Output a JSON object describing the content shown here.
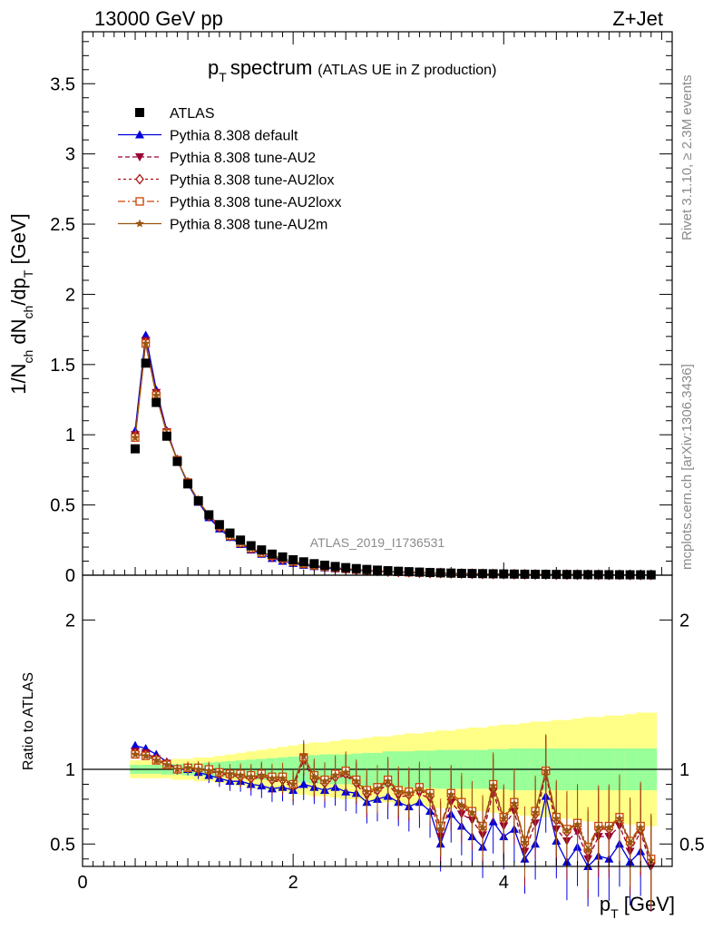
{
  "header": {
    "energy_label": "13000 GeV pp",
    "process_label": "Z+Jet",
    "rivet_label": "Rivet 3.1.10, ≥ 2.3M events",
    "mcplots_label": "mcplots.cern.ch [arXiv:1306.3436]",
    "analysis_label": "ATLAS_2019_I1736531"
  },
  "colors": {
    "data": "#000000",
    "default": "#0000dd",
    "au2": "#990033",
    "au2lox": "#aa1111",
    "au2loxx": "#cc4400",
    "au2m": "#995511",
    "band_inner": "#99ff99",
    "band_outer": "#ffff88"
  },
  "chart_data": [
    {
      "type": "scatter",
      "title_main": "p",
      "title_sub": "T",
      "title_word": "spectrum",
      "title_note": "(ATLAS UE in Z production)",
      "ylabel": {
        "a": "1/N",
        "b": "ch",
        "c": " dN",
        "d": "ch",
        "e": "/dp",
        "f": "T",
        "g": " [GeV]"
      },
      "ylim": [
        0,
        3.87
      ],
      "yticks": [
        "0",
        "0.5",
        "1",
        "1.5",
        "2",
        "2.5",
        "3",
        "3.5"
      ],
      "x": [
        0.5,
        0.6,
        0.7,
        0.8,
        0.9,
        1.0,
        1.1,
        1.2,
        1.3,
        1.4,
        1.5,
        1.6,
        1.7,
        1.8,
        1.9,
        2.0,
        2.1,
        2.2,
        2.3,
        2.4,
        2.5,
        2.6,
        2.7,
        2.8,
        2.9,
        3.0,
        3.1,
        3.2,
        3.3,
        3.4,
        3.5,
        3.6,
        3.7,
        3.8,
        3.9,
        4.0,
        4.1,
        4.2,
        4.3,
        4.4,
        4.5,
        4.6,
        4.7,
        4.8,
        4.9,
        5.0,
        5.1,
        5.2,
        5.3,
        5.4
      ],
      "legend": [
        "ATLAS",
        "Pythia 8.308 default",
        "Pythia 8.308 tune-AU2",
        "Pythia 8.308 tune-AU2lox",
        "Pythia 8.308 tune-AU2loxx",
        "Pythia 8.308 tune-AU2m"
      ],
      "series": [
        {
          "name": "ATLAS",
          "values": [
            0.9,
            1.51,
            1.23,
            0.99,
            0.81,
            0.65,
            0.53,
            0.43,
            0.36,
            0.3,
            0.25,
            0.21,
            0.18,
            0.15,
            0.13,
            0.11,
            0.095,
            0.082,
            0.071,
            0.062,
            0.054,
            0.047,
            0.041,
            0.036,
            0.032,
            0.028,
            0.025,
            0.022,
            0.019,
            0.017,
            0.015,
            0.013,
            0.012,
            0.011,
            0.01,
            0.009,
            0.008,
            0.007,
            0.0065,
            0.006,
            0.0055,
            0.005,
            0.0045,
            0.004,
            0.0037,
            0.0034,
            0.0031,
            0.0028,
            0.0026,
            0.0024
          ]
        },
        {
          "name": "Pythia 8.308 default",
          "values": [
            1.03,
            1.71,
            1.32,
            1.03,
            0.82,
            0.65,
            0.52,
            0.41,
            0.33,
            0.27,
            0.22,
            0.18,
            0.15,
            0.12,
            0.1,
            0.085,
            0.072,
            0.062,
            0.053,
            0.046,
            0.04,
            0.035,
            0.031,
            0.027,
            0.024,
            0.021,
            0.019,
            0.017,
            0.015,
            0.013,
            0.012,
            0.011,
            0.0095,
            0.0085,
            0.0076,
            0.0068,
            0.006,
            0.0054,
            0.0048,
            0.0043,
            0.0039,
            0.0035,
            0.0031,
            0.0028,
            0.0025,
            0.0023,
            0.002,
            0.0018,
            0.0016,
            0.0015
          ]
        },
        {
          "name": "Pythia 8.308 tune-AU2",
          "values": [
            1.0,
            1.67,
            1.3,
            1.02,
            0.82,
            0.66,
            0.53,
            0.42,
            0.34,
            0.28,
            0.23,
            0.19,
            0.16,
            0.13,
            0.11,
            0.093,
            0.079,
            0.068,
            0.058,
            0.05,
            0.044,
            0.038,
            0.033,
            0.029,
            0.026,
            0.023,
            0.02,
            0.018,
            0.016,
            0.014,
            0.013,
            0.011,
            0.01,
            0.009,
            0.008,
            0.0073,
            0.0065,
            0.0058,
            0.0052,
            0.0047,
            0.0042,
            0.0038,
            0.0034,
            0.003,
            0.0027,
            0.0025,
            0.0022,
            0.002,
            0.0018,
            0.0016
          ]
        },
        {
          "name": "Pythia 8.308 tune-AU2lox",
          "values": [
            0.99,
            1.66,
            1.29,
            1.02,
            0.82,
            0.66,
            0.53,
            0.42,
            0.34,
            0.28,
            0.23,
            0.19,
            0.16,
            0.13,
            0.11,
            0.094,
            0.08,
            0.069,
            0.059,
            0.051,
            0.045,
            0.039,
            0.034,
            0.03,
            0.026,
            0.023,
            0.021,
            0.018,
            0.016,
            0.015,
            0.013,
            0.012,
            0.01,
            0.0092,
            0.0082,
            0.0074,
            0.0066,
            0.0059,
            0.0053,
            0.0048,
            0.0043,
            0.0039,
            0.0035,
            0.0031,
            0.0028,
            0.0026,
            0.0023,
            0.0021,
            0.0019,
            0.0017
          ]
        },
        {
          "name": "Pythia 8.308 tune-AU2loxx",
          "values": [
            0.98,
            1.65,
            1.28,
            1.01,
            0.82,
            0.66,
            0.53,
            0.43,
            0.35,
            0.28,
            0.23,
            0.19,
            0.16,
            0.14,
            0.12,
            0.096,
            0.082,
            0.07,
            0.061,
            0.053,
            0.046,
            0.04,
            0.035,
            0.031,
            0.027,
            0.024,
            0.021,
            0.019,
            0.017,
            0.015,
            0.013,
            0.012,
            0.011,
            0.0095,
            0.0085,
            0.0076,
            0.0068,
            0.0061,
            0.0055,
            0.005,
            0.0045,
            0.004,
            0.0036,
            0.0032,
            0.0029,
            0.0027,
            0.0024,
            0.0022,
            0.002,
            0.0018
          ]
        },
        {
          "name": "Pythia 8.308 tune-AU2m",
          "values": [
            0.98,
            1.65,
            1.28,
            1.01,
            0.82,
            0.66,
            0.53,
            0.43,
            0.35,
            0.28,
            0.23,
            0.19,
            0.16,
            0.14,
            0.12,
            0.095,
            0.081,
            0.069,
            0.06,
            0.052,
            0.045,
            0.039,
            0.034,
            0.03,
            0.027,
            0.024,
            0.021,
            0.019,
            0.017,
            0.015,
            0.013,
            0.012,
            0.011,
            0.0093,
            0.0083,
            0.0075,
            0.0067,
            0.006,
            0.0054,
            0.0049,
            0.0044,
            0.004,
            0.0036,
            0.0032,
            0.0029,
            0.0026,
            0.0024,
            0.0021,
            0.0019,
            0.0017
          ]
        }
      ]
    },
    {
      "type": "line",
      "ylabel": "Ratio to ATLAS",
      "xlabel": {
        "a": "p",
        "b": "T",
        "c": " [GeV]"
      },
      "xlim": [
        0,
        5.6
      ],
      "ylim": [
        0.35,
        2.3
      ],
      "xticks": [
        "0",
        "2",
        "4"
      ],
      "yticks": [
        "0.5",
        "1",
        "2"
      ],
      "x": [
        0.5,
        0.6,
        0.7,
        0.8,
        0.9,
        1.0,
        1.1,
        1.2,
        1.3,
        1.4,
        1.5,
        1.6,
        1.7,
        1.8,
        1.9,
        2.0,
        2.1,
        2.2,
        2.3,
        2.4,
        2.5,
        2.6,
        2.7,
        2.8,
        2.9,
        3.0,
        3.1,
        3.2,
        3.3,
        3.4,
        3.5,
        3.6,
        3.7,
        3.8,
        3.9,
        4.0,
        4.1,
        4.2,
        4.3,
        4.4,
        4.5,
        4.6,
        4.7,
        4.8,
        4.9,
        5.0,
        5.1,
        5.2,
        5.3,
        5.4
      ],
      "band_inner": [
        0.03,
        0.03,
        0.03,
        0.035,
        0.035,
        0.04,
        0.04,
        0.045,
        0.05,
        0.055,
        0.06,
        0.065,
        0.07,
        0.075,
        0.08,
        0.085,
        0.09,
        0.095,
        0.1,
        0.1,
        0.1,
        0.105,
        0.11,
        0.11,
        0.12,
        0.12,
        0.12,
        0.125,
        0.125,
        0.13,
        0.13,
        0.13,
        0.13,
        0.13,
        0.135,
        0.135,
        0.14,
        0.14,
        0.14,
        0.14,
        0.14,
        0.14,
        0.14,
        0.14,
        0.14,
        0.14,
        0.14,
        0.14,
        0.14,
        0.14
      ],
      "band_outer": [
        0.06,
        0.06,
        0.06,
        0.06,
        0.07,
        0.07,
        0.08,
        0.08,
        0.09,
        0.1,
        0.11,
        0.12,
        0.13,
        0.14,
        0.15,
        0.16,
        0.17,
        0.18,
        0.18,
        0.19,
        0.2,
        0.2,
        0.21,
        0.22,
        0.22,
        0.23,
        0.24,
        0.24,
        0.25,
        0.26,
        0.26,
        0.27,
        0.28,
        0.28,
        0.29,
        0.3,
        0.3,
        0.31,
        0.32,
        0.32,
        0.33,
        0.33,
        0.34,
        0.35,
        0.35,
        0.36,
        0.36,
        0.37,
        0.38,
        0.38
      ],
      "series": [
        {
          "name": "Pythia 8.308 default",
          "values": [
            1.16,
            1.14,
            1.1,
            1.05,
            1.0,
            1.0,
            0.98,
            0.96,
            0.94,
            0.92,
            0.92,
            0.9,
            0.89,
            0.87,
            0.88,
            0.86,
            0.9,
            0.88,
            0.86,
            0.88,
            0.85,
            0.84,
            0.78,
            0.8,
            0.82,
            0.78,
            0.75,
            0.78,
            0.72,
            0.5,
            0.7,
            0.62,
            0.55,
            0.48,
            0.65,
            0.55,
            0.6,
            0.4,
            0.5,
            0.82,
            0.52,
            0.38,
            0.48,
            0.35,
            0.42,
            0.4,
            0.5,
            0.38,
            0.45,
            0.32
          ]
        },
        {
          "name": "Pythia 8.308 tune-AU2",
          "values": [
            1.12,
            1.11,
            1.07,
            1.04,
            1.0,
            1.01,
            1.0,
            0.99,
            0.97,
            0.96,
            0.95,
            0.93,
            0.95,
            0.92,
            0.92,
            0.88,
            1.06,
            0.92,
            0.9,
            0.94,
            0.96,
            0.9,
            0.82,
            0.85,
            0.9,
            0.82,
            0.82,
            0.84,
            0.8,
            0.55,
            0.78,
            0.7,
            0.66,
            0.56,
            0.85,
            0.62,
            0.72,
            0.45,
            0.64,
            0.98,
            0.6,
            0.52,
            0.58,
            0.4,
            0.55,
            0.55,
            0.62,
            0.45,
            0.58,
            0.35
          ]
        },
        {
          "name": "Pythia 8.308 tune-AU2lox",
          "values": [
            1.11,
            1.1,
            1.07,
            1.04,
            1.0,
            1.01,
            1.0,
            0.99,
            0.97,
            0.96,
            0.95,
            0.94,
            0.96,
            0.93,
            0.93,
            0.89,
            1.07,
            0.94,
            0.91,
            0.95,
            0.97,
            0.91,
            0.84,
            0.86,
            0.91,
            0.84,
            0.83,
            0.86,
            0.82,
            0.6,
            0.82,
            0.75,
            0.7,
            0.6,
            0.88,
            0.66,
            0.76,
            0.5,
            0.7,
            0.98,
            0.66,
            0.58,
            0.62,
            0.45,
            0.6,
            0.6,
            0.66,
            0.5,
            0.6,
            0.38
          ]
        },
        {
          "name": "Pythia 8.308 tune-AU2loxx",
          "values": [
            1.1,
            1.09,
            1.06,
            1.03,
            1.0,
            1.01,
            1.01,
            1.0,
            0.98,
            0.97,
            0.97,
            0.96,
            0.97,
            0.95,
            0.95,
            0.9,
            1.08,
            0.96,
            0.93,
            0.97,
            0.99,
            0.93,
            0.86,
            0.88,
            0.93,
            0.86,
            0.85,
            0.88,
            0.84,
            0.62,
            0.84,
            0.78,
            0.72,
            0.62,
            0.9,
            0.68,
            0.78,
            0.52,
            0.72,
            0.99,
            0.68,
            0.6,
            0.64,
            0.48,
            0.62,
            0.62,
            0.68,
            0.52,
            0.62,
            0.4
          ]
        },
        {
          "name": "Pythia 8.308 tune-AU2m",
          "values": [
            1.1,
            1.09,
            1.06,
            1.03,
            1.0,
            1.01,
            1.0,
            0.99,
            0.98,
            0.97,
            0.96,
            0.95,
            0.96,
            0.94,
            0.94,
            0.9,
            1.09,
            0.95,
            0.92,
            0.96,
            0.98,
            0.92,
            0.85,
            0.87,
            0.92,
            0.85,
            0.84,
            0.87,
            0.83,
            0.6,
            0.83,
            0.76,
            0.71,
            0.61,
            0.89,
            0.67,
            0.77,
            0.51,
            0.71,
            0.99,
            0.67,
            0.59,
            0.63,
            0.46,
            0.61,
            0.61,
            0.67,
            0.51,
            0.61,
            0.39
          ]
        }
      ]
    }
  ]
}
